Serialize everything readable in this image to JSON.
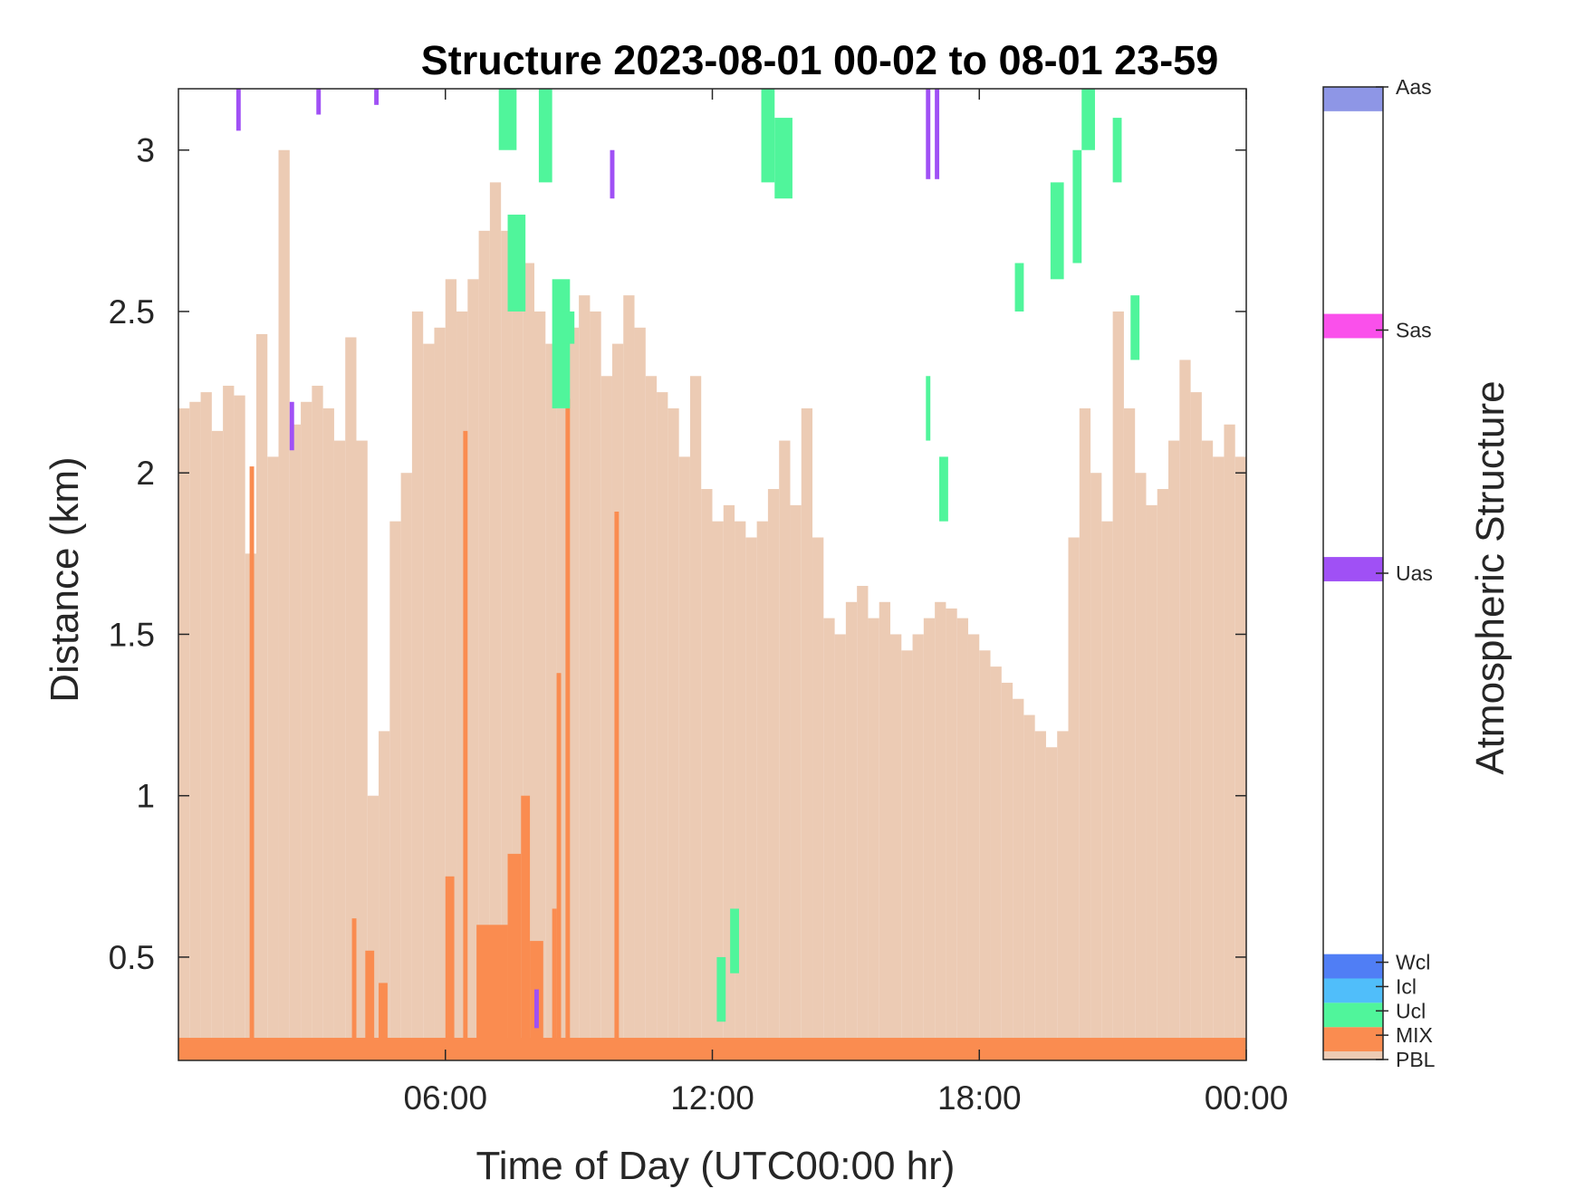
{
  "chart_data": {
    "type": "bar",
    "title": "Structure 2023-08-01 00-02 to 08-01 23-59",
    "xlabel": "Time of Day (UTC00:00 hr)",
    "ylabel": "Distance (km)",
    "xlim": [
      0,
      24
    ],
    "ylim": [
      0.18,
      3.19
    ],
    "x_ticks": [
      6,
      12,
      18,
      24
    ],
    "x_tick_labels": [
      "06:00",
      "12:00",
      "18:00",
      "00:00"
    ],
    "y_ticks": [
      0.5,
      1,
      1.5,
      2,
      2.5,
      3
    ],
    "y_tick_labels": [
      "0.5",
      "1",
      "1.5",
      "2",
      "2.5",
      "3"
    ],
    "grid": false,
    "colorbar": {
      "label": "Atmospheric Structure",
      "range": [
        0,
        3
      ],
      "items": [
        {
          "name": "PBL",
          "color": "#ECCBB4",
          "from": 0.0,
          "to": 0.025
        },
        {
          "name": "MIX",
          "color": "#FA8C50",
          "from": 0.025,
          "to": 0.1
        },
        {
          "name": "Ucl",
          "color": "#50F59B",
          "from": 0.1,
          "to": 0.175
        },
        {
          "name": "Icl",
          "color": "#50BEFA",
          "from": 0.175,
          "to": 0.25
        },
        {
          "name": "Wcl",
          "color": "#507EF5",
          "from": 0.25,
          "to": 0.325
        },
        {
          "name": "Uas",
          "color": "#A050F5",
          "from": 1.475,
          "to": 1.55
        },
        {
          "name": "Sas",
          "color": "#FA50EB",
          "from": 2.225,
          "to": 2.3
        },
        {
          "name": "Aas",
          "color": "#8E96E6",
          "from": 2.925,
          "to": 3.0
        }
      ],
      "ticks": [
        {
          "label": "PBL",
          "value": 0.0
        },
        {
          "label": "MIX",
          "value": 0.075
        },
        {
          "label": "Ucl",
          "value": 0.15
        },
        {
          "label": "Icl",
          "value": 0.225
        },
        {
          "label": "Wcl",
          "value": 0.3
        },
        {
          "label": "Uas",
          "value": 1.5
        },
        {
          "name_note": "",
          "label": "Sas",
          "value": 2.25
        },
        {
          "label": "Aas",
          "value": 3.0
        }
      ]
    },
    "series": [
      {
        "name": "PBL",
        "color": "#ECCBB4",
        "segments": [
          [
            0.0,
            0.25,
            2.2
          ],
          [
            0.25,
            0.5,
            2.22
          ],
          [
            0.5,
            0.75,
            2.25
          ],
          [
            0.75,
            1.0,
            2.13
          ],
          [
            1.0,
            1.25,
            2.27
          ],
          [
            1.25,
            1.5,
            2.24
          ],
          [
            1.5,
            1.75,
            1.75
          ],
          [
            1.75,
            2.0,
            2.43
          ],
          [
            2.0,
            2.25,
            2.05
          ],
          [
            2.25,
            2.5,
            3.0
          ],
          [
            2.5,
            2.75,
            2.15
          ],
          [
            2.75,
            3.0,
            2.22
          ],
          [
            3.0,
            3.25,
            2.27
          ],
          [
            3.25,
            3.5,
            2.2
          ],
          [
            3.5,
            3.75,
            2.1
          ],
          [
            3.75,
            4.0,
            2.42
          ],
          [
            4.0,
            4.25,
            2.1
          ],
          [
            4.25,
            4.5,
            1.0
          ],
          [
            4.5,
            4.75,
            1.2
          ],
          [
            4.75,
            5.0,
            1.85
          ],
          [
            5.0,
            5.25,
            2.0
          ],
          [
            5.25,
            5.5,
            2.5
          ],
          [
            5.5,
            5.75,
            2.4
          ],
          [
            5.75,
            6.0,
            2.45
          ],
          [
            6.0,
            6.25,
            2.6
          ],
          [
            6.25,
            6.5,
            2.5
          ],
          [
            6.5,
            6.75,
            2.6
          ],
          [
            6.75,
            7.0,
            2.75
          ],
          [
            7.0,
            7.25,
            2.9
          ],
          [
            7.25,
            7.5,
            2.75
          ],
          [
            7.5,
            7.75,
            2.7
          ],
          [
            7.75,
            8.0,
            2.65
          ],
          [
            8.0,
            8.25,
            2.5
          ],
          [
            8.25,
            8.5,
            2.4
          ],
          [
            8.5,
            8.75,
            2.2
          ],
          [
            8.75,
            9.0,
            2.45
          ],
          [
            9.0,
            9.25,
            2.55
          ],
          [
            9.25,
            9.5,
            2.5
          ],
          [
            9.5,
            9.75,
            2.3
          ],
          [
            9.75,
            10.0,
            2.4
          ],
          [
            10.0,
            10.25,
            2.55
          ],
          [
            10.25,
            10.5,
            2.45
          ],
          [
            10.5,
            10.75,
            2.3
          ],
          [
            10.75,
            11.0,
            2.25
          ],
          [
            11.0,
            11.25,
            2.2
          ],
          [
            11.25,
            11.5,
            2.05
          ],
          [
            11.5,
            11.75,
            2.3
          ],
          [
            11.75,
            12.0,
            1.95
          ],
          [
            12.0,
            12.25,
            1.85
          ],
          [
            12.25,
            12.5,
            1.9
          ],
          [
            12.5,
            12.75,
            1.85
          ],
          [
            12.75,
            13.0,
            1.8
          ],
          [
            13.0,
            13.25,
            1.85
          ],
          [
            13.25,
            13.5,
            1.95
          ],
          [
            13.5,
            13.75,
            2.1
          ],
          [
            13.75,
            14.0,
            1.9
          ],
          [
            14.0,
            14.25,
            2.2
          ],
          [
            14.25,
            14.5,
            1.8
          ],
          [
            14.5,
            14.75,
            1.55
          ],
          [
            14.75,
            15.0,
            1.5
          ],
          [
            15.0,
            15.25,
            1.6
          ],
          [
            15.25,
            15.5,
            1.65
          ],
          [
            15.5,
            15.75,
            1.55
          ],
          [
            15.75,
            16.0,
            1.6
          ],
          [
            16.0,
            16.25,
            1.5
          ],
          [
            16.25,
            16.5,
            1.45
          ],
          [
            16.5,
            16.75,
            1.5
          ],
          [
            16.75,
            17.0,
            1.55
          ],
          [
            17.0,
            17.25,
            1.6
          ],
          [
            17.25,
            17.5,
            1.58
          ],
          [
            17.5,
            17.75,
            1.55
          ],
          [
            17.75,
            18.0,
            1.5
          ],
          [
            18.0,
            18.25,
            1.45
          ],
          [
            18.25,
            18.5,
            1.4
          ],
          [
            18.5,
            18.75,
            1.35
          ],
          [
            18.75,
            19.0,
            1.3
          ],
          [
            19.0,
            19.25,
            1.25
          ],
          [
            19.25,
            19.5,
            1.2
          ],
          [
            19.5,
            19.75,
            1.15
          ],
          [
            19.75,
            20.0,
            1.2
          ],
          [
            20.0,
            20.25,
            1.8
          ],
          [
            20.25,
            20.5,
            2.2
          ],
          [
            20.5,
            20.75,
            2.0
          ],
          [
            20.75,
            21.0,
            1.85
          ],
          [
            21.0,
            21.25,
            2.5
          ],
          [
            21.25,
            21.5,
            2.2
          ],
          [
            21.5,
            21.75,
            2.0
          ],
          [
            21.75,
            22.0,
            1.9
          ],
          [
            22.0,
            22.25,
            1.95
          ],
          [
            22.25,
            22.5,
            2.1
          ],
          [
            22.5,
            22.75,
            2.35
          ],
          [
            22.75,
            23.0,
            2.25
          ],
          [
            23.0,
            23.25,
            2.1
          ],
          [
            23.25,
            23.5,
            2.05
          ],
          [
            23.5,
            23.75,
            2.15
          ],
          [
            23.75,
            24.0,
            2.05
          ]
        ]
      },
      {
        "name": "MIX",
        "color": "#FA8C50",
        "segments": [
          [
            0.0,
            24.0,
            0.18,
            0.25
          ],
          [
            1.6,
            1.7,
            0.18,
            2.02
          ],
          [
            3.9,
            4.0,
            0.18,
            0.62
          ],
          [
            4.2,
            4.4,
            0.18,
            0.52
          ],
          [
            4.5,
            4.7,
            0.18,
            0.42
          ],
          [
            6.0,
            6.2,
            0.18,
            0.75
          ],
          [
            6.4,
            6.5,
            0.18,
            2.13
          ],
          [
            6.7,
            7.4,
            0.18,
            0.6
          ],
          [
            7.4,
            7.7,
            0.18,
            0.82
          ],
          [
            7.7,
            7.9,
            0.18,
            1.0
          ],
          [
            7.9,
            8.2,
            0.18,
            0.55
          ],
          [
            8.4,
            8.5,
            0.18,
            0.65
          ],
          [
            8.5,
            8.6,
            0.18,
            1.38
          ],
          [
            8.7,
            8.8,
            0.18,
            2.23
          ],
          [
            9.8,
            9.9,
            0.18,
            1.88
          ]
        ]
      },
      {
        "name": "Ucl",
        "color": "#50F59B",
        "segments": [
          [
            7.2,
            7.6,
            3.0,
            3.19
          ],
          [
            7.4,
            7.8,
            2.5,
            2.8
          ],
          [
            8.1,
            8.4,
            2.9,
            3.19
          ],
          [
            8.4,
            8.8,
            2.2,
            2.6
          ],
          [
            8.6,
            8.9,
            2.4,
            2.5
          ],
          [
            12.1,
            12.3,
            0.3,
            0.5
          ],
          [
            12.4,
            12.6,
            0.45,
            0.65
          ],
          [
            13.1,
            13.4,
            2.9,
            3.19
          ],
          [
            13.4,
            13.8,
            2.85,
            3.1
          ],
          [
            16.8,
            16.9,
            2.1,
            2.3
          ],
          [
            17.1,
            17.3,
            1.85,
            2.05
          ],
          [
            18.8,
            19.0,
            2.5,
            2.65
          ],
          [
            19.6,
            19.9,
            2.6,
            2.9
          ],
          [
            20.1,
            20.3,
            2.65,
            3.0
          ],
          [
            20.3,
            20.6,
            3.0,
            3.19
          ],
          [
            21.0,
            21.2,
            2.9,
            3.1
          ],
          [
            21.4,
            21.6,
            2.35,
            2.55
          ]
        ]
      },
      {
        "name": "Uas",
        "color": "#A050F5",
        "segments": [
          [
            1.3,
            1.4,
            3.06,
            3.19
          ],
          [
            2.5,
            2.6,
            2.07,
            2.22
          ],
          [
            3.1,
            3.2,
            3.11,
            3.19
          ],
          [
            4.4,
            4.5,
            3.14,
            3.19
          ],
          [
            8.0,
            8.1,
            0.28,
            0.4
          ],
          [
            9.7,
            9.8,
            2.85,
            3.0
          ],
          [
            16.8,
            16.9,
            2.91,
            3.19
          ],
          [
            17.0,
            17.1,
            2.91,
            3.19
          ]
        ]
      }
    ]
  }
}
